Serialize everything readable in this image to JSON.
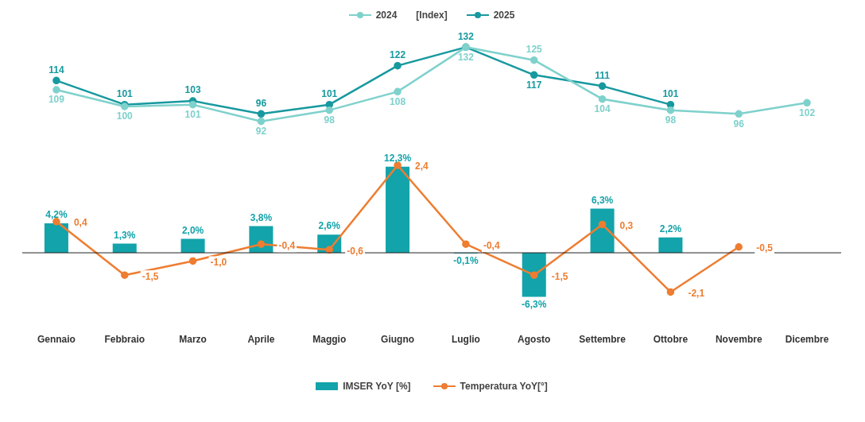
{
  "chart_data": [
    {
      "type": "line",
      "categories": [
        null,
        null,
        null,
        null,
        null,
        null,
        null,
        null,
        null,
        null,
        null,
        null
      ],
      "legend": "top",
      "legend_title": "[Index]",
      "marker": "circle",
      "data_labels": true,
      "series": [
        {
          "name": "2024",
          "color": "#7fd1cc",
          "values": [
            109,
            100,
            101,
            92,
            98,
            108,
            132,
            125,
            104,
            98,
            96,
            102
          ]
        },
        {
          "name": "2025",
          "color": "#17999f",
          "values": [
            114,
            101,
            103,
            96,
            101,
            122,
            132,
            117,
            111,
            101,
            null,
            null
          ]
        }
      ]
    },
    {
      "type": "bar",
      "categories": [
        "Gennaio",
        "Febbraio",
        "Marzo",
        "Aprile",
        "Maggio",
        "Giugno",
        "Luglio",
        "Agosto",
        "Settembre",
        "Ottobre",
        "Novembre",
        "Dicembre"
      ],
      "legend": "bottom",
      "series": [
        {
          "name": "IMSER YoY [%]",
          "type": "bar",
          "color": "#13a3aa",
          "values": [
            4.2,
            1.3,
            2.0,
            3.8,
            2.6,
            12.3,
            -0.1,
            -6.3,
            6.3,
            2.2,
            null,
            null
          ],
          "value_labels": [
            "4,2%",
            "1,3%",
            "2,0%",
            "3,8%",
            "2,6%",
            "12,3%",
            "-0,1%",
            "-6,3%",
            "6,3%",
            "2,2%",
            null,
            null
          ]
        },
        {
          "name": "Temperatura YoY[°]",
          "type": "line",
          "axis": "y2",
          "color": "#ee7d31",
          "marker": "circle",
          "values": [
            0.4,
            -1.5,
            -1.0,
            -0.4,
            -0.6,
            2.4,
            -0.4,
            -1.5,
            0.3,
            -2.1,
            -0.5,
            null
          ],
          "value_labels": [
            "0,4",
            "-1,5",
            "-1,0",
            "-0,4",
            "-0,6",
            "2,4",
            "-0,4",
            "-1,5",
            "0,3",
            "-2,1",
            "-0,5",
            null
          ]
        }
      ]
    }
  ]
}
